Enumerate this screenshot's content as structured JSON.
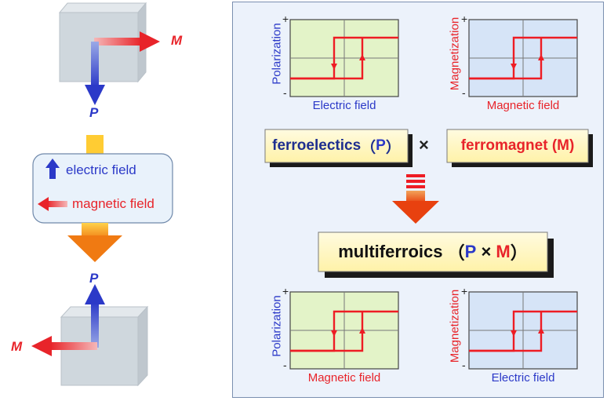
{
  "left": {
    "top_crystal": {
      "m_label": "M",
      "p_label": "P"
    },
    "control_box": {
      "electric_label": "electric field",
      "magnetic_label": "magnetic field"
    },
    "bottom_crystal": {
      "p_label": "P",
      "m_label": "M"
    }
  },
  "right": {
    "plot1": {
      "ylabel": "Polarization",
      "xlabel": "Electric field",
      "plus": "+",
      "minus": "-"
    },
    "plot2": {
      "ylabel": "Magnetization",
      "xlabel": "Magnetic field",
      "plus": "+",
      "minus": "-"
    },
    "ferroelectric_label": "ferroelectics（P）",
    "ferroelectric_main": "ferroelectics",
    "ferroelectric_p": "P",
    "times": "×",
    "ferromagnet_label": "ferromagnet (M)",
    "multiferroics": {
      "word": "multiferroics",
      "p": "P",
      "x": "×",
      "m": "M"
    },
    "plot3": {
      "ylabel": "Polarization",
      "xlabel": "Magnetic field",
      "plus": "+",
      "minus": "-"
    },
    "plot4": {
      "ylabel": "Magnetization",
      "xlabel": "Electric field",
      "plus": "+",
      "minus": "-"
    }
  },
  "colors": {
    "blue": "#2b39c8",
    "red": "#e8242a",
    "plot_green": "#e3f3c8",
    "plot_blue": "#d6e4f7",
    "loop_red": "#ee1c24"
  }
}
